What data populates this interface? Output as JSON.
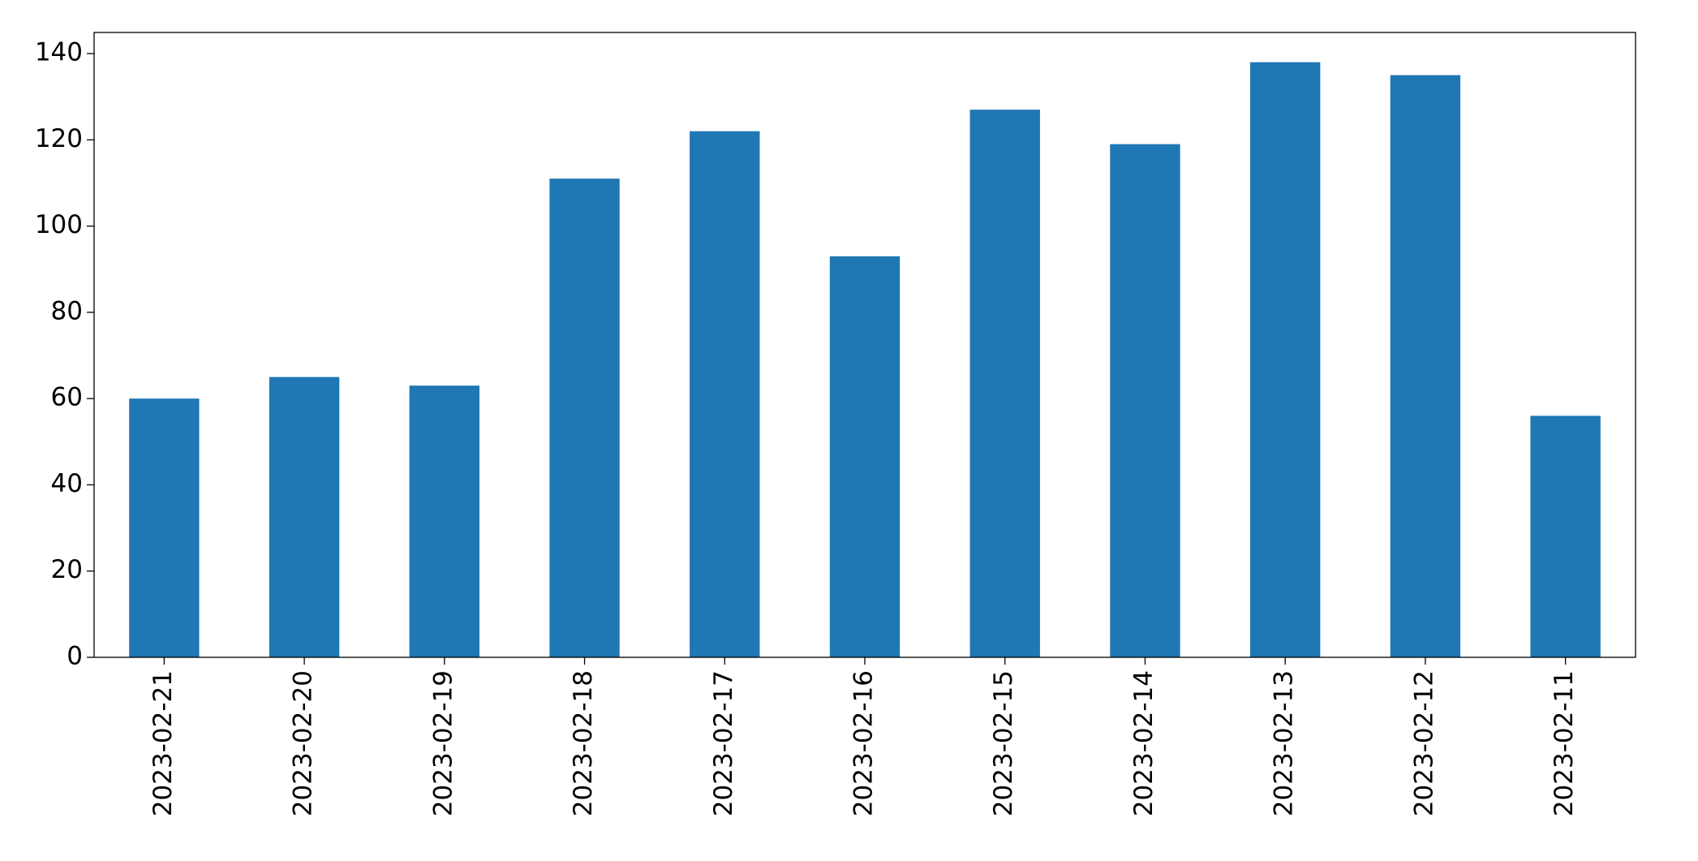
{
  "chart_data": {
    "type": "bar",
    "categories": [
      "2023-02-21",
      "2023-02-20",
      "2023-02-19",
      "2023-02-18",
      "2023-02-17",
      "2023-02-16",
      "2023-02-15",
      "2023-02-14",
      "2023-02-13",
      "2023-02-12",
      "2023-02-11"
    ],
    "values": [
      60,
      65,
      63,
      111,
      122,
      93,
      127,
      119,
      138,
      135,
      56
    ],
    "color": "#1f77b4",
    "ylim": [
      0,
      144.9
    ],
    "yticks": [
      0,
      20,
      40,
      60,
      80,
      100,
      120,
      140
    ],
    "grid": false
  }
}
